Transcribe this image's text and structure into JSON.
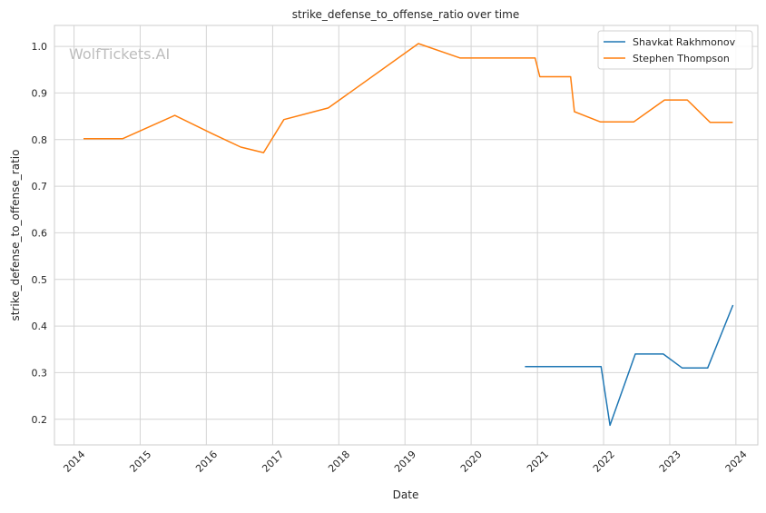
{
  "chart_data": {
    "type": "line",
    "title": "strike_defense_to_offense_ratio over time",
    "xlabel": "Date",
    "ylabel": "strike_defense_to_offense_ratio",
    "watermark": "WolfTickets.AI",
    "xlim": [
      "2013-09-15",
      "2024-05-01"
    ],
    "ylim": [
      0.145,
      1.045
    ],
    "yticks": [
      0.2,
      0.3,
      0.4,
      0.5,
      0.6,
      0.7,
      0.8,
      0.9,
      1.0
    ],
    "ytick_labels": [
      "0.2",
      "0.3",
      "0.4",
      "0.5",
      "0.6",
      "0.7",
      "0.8",
      "0.9",
      "1.0"
    ],
    "xticks": [
      "2014-01-01",
      "2015-01-01",
      "2016-01-01",
      "2017-01-01",
      "2018-01-01",
      "2019-01-01",
      "2020-01-01",
      "2021-01-01",
      "2022-01-01",
      "2023-01-01",
      "2024-01-01"
    ],
    "xtick_labels": [
      "2014",
      "2015",
      "2016",
      "2017",
      "2018",
      "2019",
      "2020",
      "2021",
      "2022",
      "2023",
      "2024"
    ],
    "grid": true,
    "legend_position": "top-right",
    "series": [
      {
        "name": "Shavkat Rakhmonov",
        "color": "#1f77b4",
        "points": [
          [
            "2020-10-24",
            0.313
          ],
          [
            "2021-12-18",
            0.313
          ],
          [
            "2022-02-05",
            0.187
          ],
          [
            "2022-06-25",
            0.34
          ],
          [
            "2022-11-26",
            0.34
          ],
          [
            "2023-03-11",
            0.31
          ],
          [
            "2023-07-29",
            0.31
          ],
          [
            "2023-12-16",
            0.445
          ]
        ]
      },
      {
        "name": "Stephen Thompson",
        "color": "#ff7f0e",
        "points": [
          [
            "2014-02-22",
            0.802
          ],
          [
            "2014-09-27",
            0.802
          ],
          [
            "2015-07-11",
            0.852
          ],
          [
            "2016-02-06",
            0.812
          ],
          [
            "2016-07-09",
            0.784
          ],
          [
            "2016-11-12",
            0.772
          ],
          [
            "2017-03-04",
            0.843
          ],
          [
            "2017-11-04",
            0.868
          ],
          [
            "2019-03-16",
            1.006
          ],
          [
            "2019-11-02",
            0.975
          ],
          [
            "2020-12-19",
            0.975
          ],
          [
            "2021-01-14",
            0.935
          ],
          [
            "2021-07-03",
            0.935
          ],
          [
            "2021-07-24",
            0.86
          ],
          [
            "2021-12-15",
            0.838
          ],
          [
            "2022-06-16",
            0.838
          ],
          [
            "2022-12-03",
            0.885
          ],
          [
            "2023-04-08",
            0.885
          ],
          [
            "2023-08-12",
            0.837
          ],
          [
            "2023-12-15",
            0.837
          ]
        ]
      }
    ]
  }
}
